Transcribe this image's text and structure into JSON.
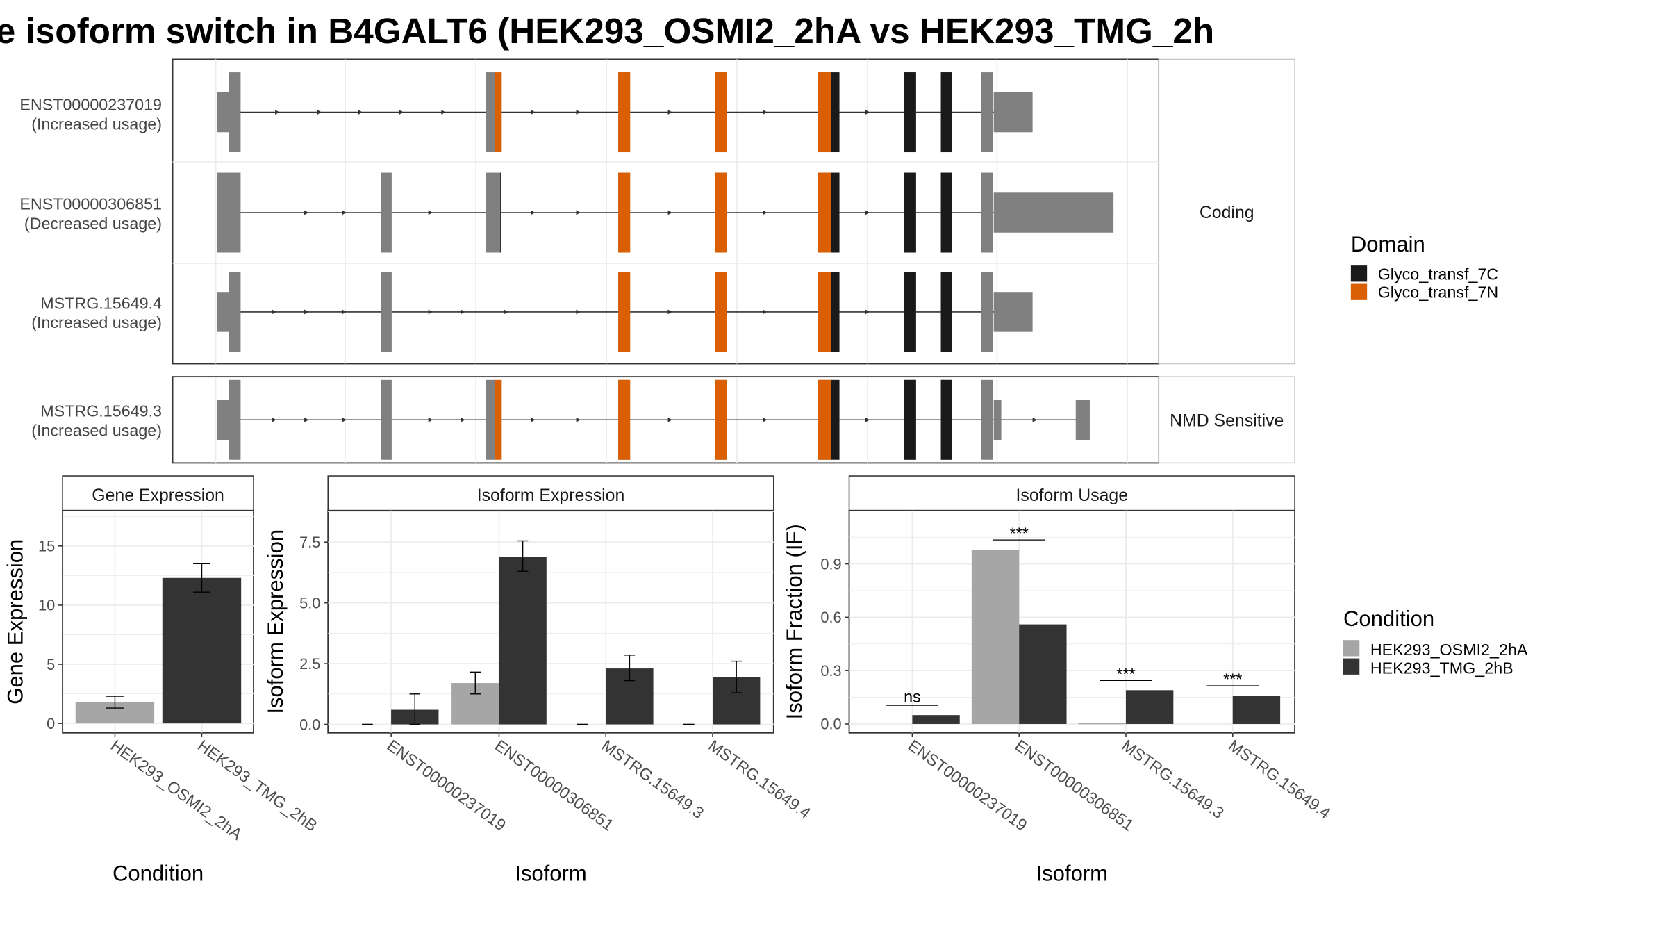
{
  "chart_data": [
    {
      "type": "gene-structure",
      "title": "e isoform switch in B4GALT6 (HEK293_OSMI2_2hA vs HEK293_TMG_2h",
      "groups": [
        {
          "label": "Coding",
          "transcripts": [
            {
              "name": "ENST00000237019",
              "usage": "(Increased usage)"
            },
            {
              "name": "ENST00000306851",
              "usage": "(Decreased usage)"
            },
            {
              "name": "MSTRG.15649.4",
              "usage": "(Increased usage)"
            }
          ]
        },
        {
          "label": "NMD Sensitive",
          "transcripts": [
            {
              "name": "MSTRG.15649.3",
              "usage": "(Increased usage)"
            }
          ]
        }
      ],
      "domain_legend": {
        "title": "Domain",
        "items": [
          {
            "name": "Glyco_transf_7C",
            "color": "#1a1a1a"
          },
          {
            "name": "Glyco_transf_7N",
            "color": "#d95f02"
          }
        ]
      }
    },
    {
      "type": "bar",
      "title": "Gene Expression",
      "xlabel": "Condition",
      "ylabel": "Gene Expression",
      "categories": [
        "HEK293_OSMI2_2hA",
        "HEK293_TMG_2hB"
      ],
      "values": [
        1.8,
        12.3
      ],
      "error_low": [
        1.3,
        11.1
      ],
      "error_high": [
        2.3,
        13.5
      ],
      "colors": [
        "#a6a6a6",
        "#333333"
      ],
      "ylim": [
        -0.8,
        18
      ],
      "yticks": [
        "0",
        "5",
        "10",
        "15"
      ]
    },
    {
      "type": "bar",
      "title": "Isoform Expression",
      "xlabel": "Isoform",
      "ylabel": "Isoform Expression",
      "categories": [
        "ENST00000237019",
        "ENST00000306851",
        "MSTRG.15649.3",
        "MSTRG.15649.4"
      ],
      "series": [
        {
          "name": "HEK293_OSMI2_2hA",
          "values": [
            0,
            1.7,
            0,
            0
          ],
          "error_low": [
            0,
            1.25,
            0,
            0
          ],
          "error_high": [
            0,
            2.15,
            0,
            0
          ]
        },
        {
          "name": "HEK293_TMG_2hB",
          "values": [
            0.6,
            6.9,
            2.3,
            1.95
          ],
          "error_low": [
            0,
            6.3,
            1.8,
            1.3
          ],
          "error_high": [
            1.25,
            7.55,
            2.85,
            2.6
          ]
        }
      ],
      "ylim": [
        -0.35,
        8.8
      ],
      "yticks": [
        "0.0",
        "2.5",
        "5.0",
        "7.5"
      ]
    },
    {
      "type": "bar",
      "title": "Isoform Usage",
      "xlabel": "Isoform",
      "ylabel": "Isoform Fraction (IF)",
      "categories": [
        "ENST00000237019",
        "ENST00000306851",
        "MSTRG.15649.3",
        "MSTRG.15649.4"
      ],
      "series": [
        {
          "name": "HEK293_OSMI2_2hA",
          "values": [
            0,
            0.98,
            0.005,
            0
          ]
        },
        {
          "name": "HEK293_TMG_2hB",
          "values": [
            0.05,
            0.56,
            0.19,
            0.16
          ]
        }
      ],
      "significance": [
        "ns",
        "***",
        "***",
        "***"
      ],
      "ylim": [
        -0.05,
        1.2
      ],
      "yticks": [
        "0.0",
        "0.3",
        "0.6",
        "0.9"
      ]
    }
  ],
  "condition_legend": {
    "title": "Condition",
    "items": [
      {
        "name": "HEK293_OSMI2_2hA",
        "color": "#a6a6a6"
      },
      {
        "name": "HEK293_TMG_2hB",
        "color": "#333333"
      }
    ]
  }
}
